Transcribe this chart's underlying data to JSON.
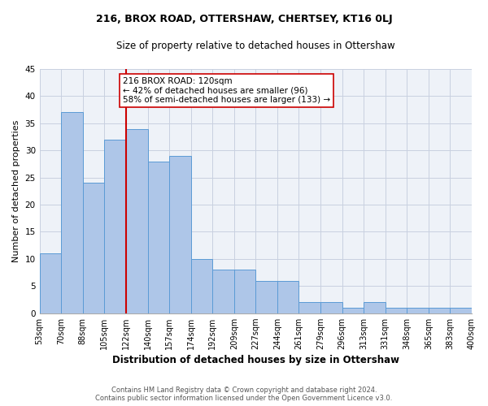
{
  "title": "216, BROX ROAD, OTTERSHAW, CHERTSEY, KT16 0LJ",
  "subtitle": "Size of property relative to detached houses in Ottershaw",
  "xlabel": "Distribution of detached houses by size in Ottershaw",
  "ylabel": "Number of detached properties",
  "bar_values": [
    11,
    37,
    24,
    32,
    34,
    28,
    29,
    10,
    8,
    8,
    6,
    6,
    2,
    2,
    1,
    2,
    1,
    1,
    1,
    1
  ],
  "bin_labels": [
    "53sqm",
    "70sqm",
    "88sqm",
    "105sqm",
    "122sqm",
    "140sqm",
    "157sqm",
    "174sqm",
    "192sqm",
    "209sqm",
    "227sqm",
    "244sqm",
    "261sqm",
    "279sqm",
    "296sqm",
    "313sqm",
    "331sqm",
    "348sqm",
    "365sqm",
    "383sqm",
    "400sqm"
  ],
  "bar_color": "#aec6e8",
  "bar_edge_color": "#5b9bd5",
  "vline_color": "#cc0000",
  "vline_bin_index": 4,
  "annotation_text_line1": "216 BROX ROAD: 120sqm",
  "annotation_text_line2": "← 42% of detached houses are smaller (96)",
  "annotation_text_line3": "58% of semi-detached houses are larger (133) →",
  "annotation_box_color": "#cc0000",
  "annotation_box_fill": "white",
  "ylim": [
    0,
    45
  ],
  "yticks": [
    0,
    5,
    10,
    15,
    20,
    25,
    30,
    35,
    40,
    45
  ],
  "footer_line1": "Contains HM Land Registry data © Crown copyright and database right 2024.",
  "footer_line2": "Contains public sector information licensed under the Open Government Licence v3.0.",
  "bg_color": "#eef2f8",
  "grid_color": "#c8d0e0",
  "title_fontsize": 9,
  "subtitle_fontsize": 8.5,
  "ylabel_fontsize": 8,
  "xlabel_fontsize": 8.5,
  "tick_fontsize": 7,
  "footer_fontsize": 6,
  "annot_fontsize": 7.5
}
